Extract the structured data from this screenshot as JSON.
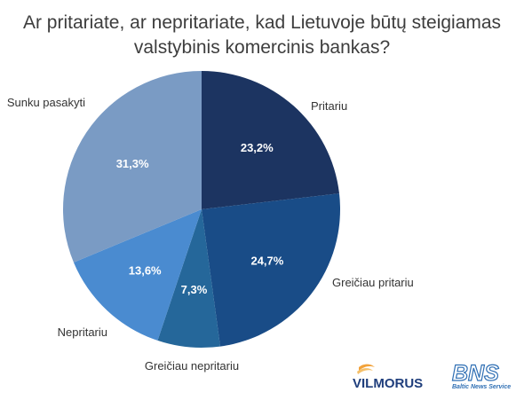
{
  "title_line1": "Ar pritariate, ar nepritariate, kad Lietuvoje būtų steigiamas",
  "title_line2": "valstybinis komercinis bankas?",
  "chart_data": {
    "type": "pie",
    "title": "Ar pritariate, ar nepritariate, kad Lietuvoje būtų steigiamas valstybinis komercinis bankas?",
    "slices": [
      {
        "label": "Pritariu",
        "value": 23.2,
        "display": "23,2%",
        "color": "#1c3461"
      },
      {
        "label": "Greičiau pritariu",
        "value": 24.7,
        "display": "24,7%",
        "color": "#194c87"
      },
      {
        "label": "Greičiau nepritariu",
        "value": 7.3,
        "display": "7,3%",
        "color": "#25679a"
      },
      {
        "label": "Nepritariu",
        "value": 13.6,
        "display": "13,6%",
        "color": "#4a8bd0"
      },
      {
        "label": "Sunku pasakyti",
        "value": 31.3,
        "display": "31,3%",
        "color": "#7a9bc4"
      }
    ]
  },
  "logos": {
    "vilmorus": "VILMORUS",
    "bns": "BNS",
    "bns_tagline": "Baltic News Service"
  }
}
